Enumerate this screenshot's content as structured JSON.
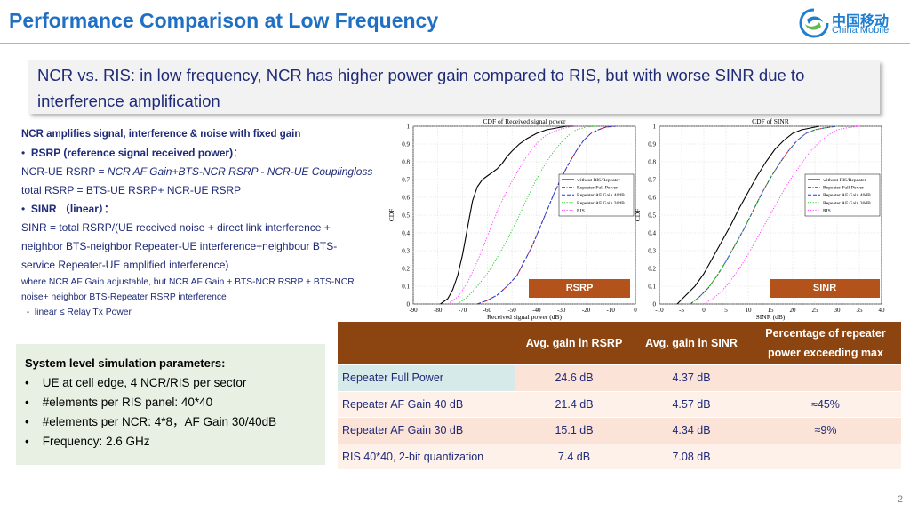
{
  "header": {
    "title": "Performance Comparison at Low Frequency",
    "logo_cn": "中国移动",
    "logo_en": "China Mobile"
  },
  "banner": {
    "text": "NCR vs. RIS: in low frequency, NCR has higher power gain compared to RIS, but with worse SINR due to interference amplification"
  },
  "left_text": {
    "heading": "NCR amplifies signal, interference & noise with fixed gain",
    "bullet1_bold": "RSRP (reference signal received power)",
    "bullet1_colon": "：",
    "rsrp_ncr_lead": "NCR-UE  RSRP = ",
    "rsrp_ncr_formula": "NCR AF Gain+BTS-NCR RSRP - NCR-UE Couplingloss",
    "rsrp_total": "total RSRP =  BTS-UE RSRP+ NCR-UE  RSRP",
    "bullet2_bold": "SINR （linear）：",
    "sinr_line1": "SINR = total RSRP/(UE received noise + direct link interference +",
    "sinr_line2": "neighbor BTS-neighbor Repeater-UE interference+neighbour BTS-",
    "sinr_line3": "service Repeater-UE amplified interference)",
    "note_line1": "where NCR AF Gain adjustable, but NCR AF Gain + BTS-NCR RSRP + BTS-NCR",
    "note_line2": "noise+ neighbor BTS-Repeater RSRP interference",
    "note_line3": "  -  linear ≤ Relay Tx Power"
  },
  "sim_params": {
    "title": "System level simulation parameters:",
    "items": [
      "UE at cell edge, 4 NCR/RIS per sector",
      "#elements per RIS panel: 40*40",
      "#elements per NCR: 4*8，AF Gain 30/40dB",
      "Frequency: 2.6 GHz"
    ]
  },
  "tags": {
    "rsrp": "RSRP",
    "sinr": "SINR"
  },
  "table": {
    "headers": [
      "",
      "Avg. gain in RSRP",
      "Avg. gain in SINR",
      "Percentage of repeater power exceeding max"
    ],
    "rows": [
      [
        "Repeater Full Power",
        "24.6 dB",
        "4.37 dB",
        ""
      ],
      [
        "Repeater AF Gain 40 dB",
        "21.4 dB",
        "4.57 dB",
        "≈45%"
      ],
      [
        "Repeater AF Gain 30 dB",
        "15.1 dB",
        "4.34 dB",
        "≈9%"
      ],
      [
        "RIS 40*40, 2-bit quantization",
        "7.4 dB",
        "7.08 dB",
        ""
      ]
    ]
  },
  "page_number": "2",
  "colors": {
    "without": "#000000",
    "full_power": "#e0202a",
    "af40": "#1f3fd8",
    "af30": "#2fd02f",
    "ris": "#ff40ff"
  },
  "chart_data": [
    {
      "type": "line",
      "title": "CDF of Received signal power",
      "xlabel": "Received signal power (dB)",
      "ylabel": "CDF",
      "xlim": [
        -90,
        0
      ],
      "ylim": [
        0,
        1
      ],
      "xticks": [
        -90,
        -80,
        -70,
        -60,
        -50,
        -40,
        -30,
        -20,
        -10,
        0
      ],
      "yticks": [
        0,
        0.1,
        0.2,
        0.3,
        0.4,
        0.5,
        0.6,
        0.7,
        0.8,
        0.9,
        1
      ],
      "legend_position": "center-right",
      "series": [
        {
          "name": "without RIS/Repeater",
          "style": "solid",
          "color_key": "without",
          "x": [
            -79,
            -76,
            -74,
            -72,
            -70,
            -68,
            -66,
            -64,
            -62,
            -60,
            -58,
            -56,
            -54,
            -52,
            -50,
            -47,
            -44,
            -40,
            -36,
            -32,
            -28,
            -25
          ],
          "y": [
            0,
            0.03,
            0.08,
            0.16,
            0.28,
            0.43,
            0.58,
            0.66,
            0.7,
            0.72,
            0.74,
            0.76,
            0.79,
            0.83,
            0.86,
            0.9,
            0.93,
            0.96,
            0.98,
            0.99,
            1.0,
            1.0
          ]
        },
        {
          "name": "Repeater Full Power",
          "style": "dashdot",
          "color_key": "full_power",
          "x": [
            -64,
            -60,
            -56,
            -52,
            -48,
            -45,
            -42,
            -39,
            -36,
            -33,
            -30,
            -27,
            -24,
            -21,
            -18,
            -15,
            -12,
            -8
          ],
          "y": [
            0,
            0.02,
            0.05,
            0.1,
            0.16,
            0.24,
            0.32,
            0.42,
            0.52,
            0.62,
            0.71,
            0.79,
            0.86,
            0.92,
            0.96,
            0.98,
            0.995,
            1.0
          ]
        },
        {
          "name": "Repeater AF Gain 40dB",
          "style": "dashed",
          "color_key": "af40",
          "x": [
            -64,
            -60,
            -56,
            -52,
            -48,
            -45,
            -42,
            -39,
            -36,
            -33,
            -30,
            -27,
            -24,
            -21,
            -18,
            -15,
            -12,
            -8
          ],
          "y": [
            0,
            0.02,
            0.05,
            0.1,
            0.16,
            0.24,
            0.32,
            0.42,
            0.52,
            0.62,
            0.71,
            0.79,
            0.86,
            0.92,
            0.96,
            0.98,
            0.995,
            1.0
          ]
        },
        {
          "name": "Repeater AF Gain 30dB",
          "style": "dotted",
          "color_key": "af30",
          "x": [
            -72,
            -68,
            -64,
            -60,
            -56,
            -52,
            -48,
            -45,
            -42,
            -39,
            -36,
            -33,
            -30,
            -27,
            -24,
            -20,
            -16
          ],
          "y": [
            0,
            0.04,
            0.1,
            0.17,
            0.26,
            0.36,
            0.47,
            0.56,
            0.65,
            0.73,
            0.8,
            0.86,
            0.91,
            0.95,
            0.98,
            0.995,
            1.0
          ]
        },
        {
          "name": "RIS",
          "style": "dotted",
          "color_key": "ris",
          "x": [
            -76,
            -72,
            -68,
            -64,
            -60,
            -56,
            -52,
            -48,
            -45,
            -42,
            -39,
            -36,
            -33,
            -30,
            -27,
            -24
          ],
          "y": [
            0,
            0.04,
            0.12,
            0.24,
            0.38,
            0.52,
            0.64,
            0.74,
            0.81,
            0.87,
            0.92,
            0.95,
            0.97,
            0.985,
            0.995,
            1.0
          ]
        }
      ]
    },
    {
      "type": "line",
      "title": "CDF of SINR",
      "xlabel": "SINR (dB)",
      "ylabel": "CDF",
      "xlim": [
        -10,
        40
      ],
      "ylim": [
        0,
        1
      ],
      "xticks": [
        -10,
        -5,
        0,
        5,
        10,
        15,
        20,
        25,
        30,
        35,
        40
      ],
      "yticks": [
        0,
        0.1,
        0.2,
        0.3,
        0.4,
        0.5,
        0.6,
        0.7,
        0.8,
        0.9,
        1
      ],
      "legend_position": "center-right",
      "series": [
        {
          "name": "without RIS/Repeater",
          "style": "solid",
          "color_key": "without",
          "x": [
            -6,
            -4,
            -2,
            0,
            2,
            4,
            6,
            8,
            10,
            12,
            14,
            16,
            18,
            20,
            22,
            24,
            26
          ],
          "y": [
            0,
            0.05,
            0.1,
            0.17,
            0.26,
            0.35,
            0.44,
            0.54,
            0.63,
            0.72,
            0.8,
            0.87,
            0.92,
            0.96,
            0.98,
            0.99,
            1.0
          ]
        },
        {
          "name": "Repeater Full Power",
          "style": "dashdot",
          "color_key": "full_power",
          "x": [
            -3,
            -1,
            1,
            3,
            5,
            7,
            9,
            11,
            13,
            15,
            17,
            19,
            21,
            23,
            25,
            27,
            30
          ],
          "y": [
            0,
            0.04,
            0.09,
            0.16,
            0.24,
            0.33,
            0.42,
            0.52,
            0.62,
            0.71,
            0.79,
            0.86,
            0.92,
            0.96,
            0.98,
            0.99,
            1.0
          ]
        },
        {
          "name": "Repeater AF Gain 40dB",
          "style": "dashed",
          "color_key": "af40",
          "x": [
            -3,
            -1,
            1,
            3,
            5,
            7,
            9,
            11,
            13,
            15,
            17,
            19,
            21,
            23,
            25,
            27,
            30
          ],
          "y": [
            0,
            0.04,
            0.09,
            0.16,
            0.24,
            0.33,
            0.42,
            0.52,
            0.62,
            0.71,
            0.79,
            0.86,
            0.92,
            0.96,
            0.98,
            0.99,
            1.0
          ]
        },
        {
          "name": "Repeater AF Gain 30dB",
          "style": "dotted",
          "color_key": "af30",
          "x": [
            -3,
            -1,
            1,
            3,
            5,
            7,
            9,
            11,
            13,
            15,
            17,
            19,
            21,
            23,
            25,
            27,
            30
          ],
          "y": [
            0,
            0.04,
            0.09,
            0.16,
            0.24,
            0.33,
            0.42,
            0.52,
            0.62,
            0.71,
            0.79,
            0.86,
            0.92,
            0.96,
            0.98,
            0.99,
            1.0
          ]
        },
        {
          "name": "RIS",
          "style": "dotted",
          "color_key": "ris",
          "x": [
            0,
            2,
            4,
            6,
            8,
            10,
            12,
            14,
            16,
            18,
            20,
            22,
            24,
            26,
            28,
            30,
            32,
            35
          ],
          "y": [
            0,
            0.03,
            0.07,
            0.13,
            0.2,
            0.28,
            0.37,
            0.46,
            0.55,
            0.64,
            0.72,
            0.79,
            0.86,
            0.91,
            0.95,
            0.98,
            0.99,
            1.0
          ]
        }
      ]
    }
  ]
}
